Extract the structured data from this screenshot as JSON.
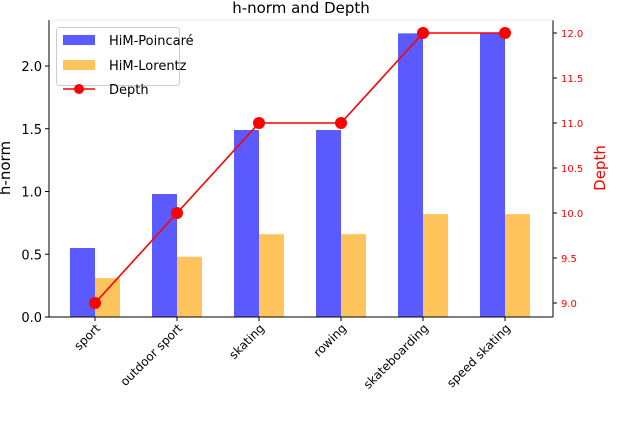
{
  "chart_data": {
    "type": "bar",
    "title": "h-norm and Depth",
    "xlabel": "",
    "ylabel": "h-norm",
    "y2label": "Depth",
    "categories": [
      "sport",
      "outdoor sport",
      "skating",
      "rowing",
      "skateboarding",
      "speed skating"
    ],
    "series": [
      {
        "name": "HiM-Poincaré",
        "type": "bar",
        "axis": "left",
        "color": "#5a5aff",
        "values": [
          0.55,
          0.98,
          1.49,
          1.49,
          2.26,
          2.26
        ]
      },
      {
        "name": "HiM-Lorentz",
        "type": "bar",
        "axis": "left",
        "color": "#ffc55c",
        "values": [
          0.31,
          0.48,
          0.66,
          0.66,
          0.82,
          0.82
        ]
      },
      {
        "name": "Depth",
        "type": "line",
        "axis": "right",
        "color": "#ff0000",
        "marker": "circle",
        "values": [
          9,
          10,
          11,
          11,
          12,
          12
        ]
      }
    ],
    "ylim": [
      0,
      2.37
    ],
    "y2lim": [
      8.87,
      12.17
    ],
    "yticks": [
      "0.0",
      "0.5",
      "1.0",
      "1.5",
      "2.0"
    ],
    "y2ticks": [
      "9.0",
      "9.5",
      "10.0",
      "10.5",
      "11.0",
      "11.5",
      "12.0"
    ],
    "legend_position": "upper left",
    "grid": false,
    "colors": {
      "axis": "#000000",
      "y2": "#ff0000",
      "legend_border": "#cccccc"
    }
  }
}
